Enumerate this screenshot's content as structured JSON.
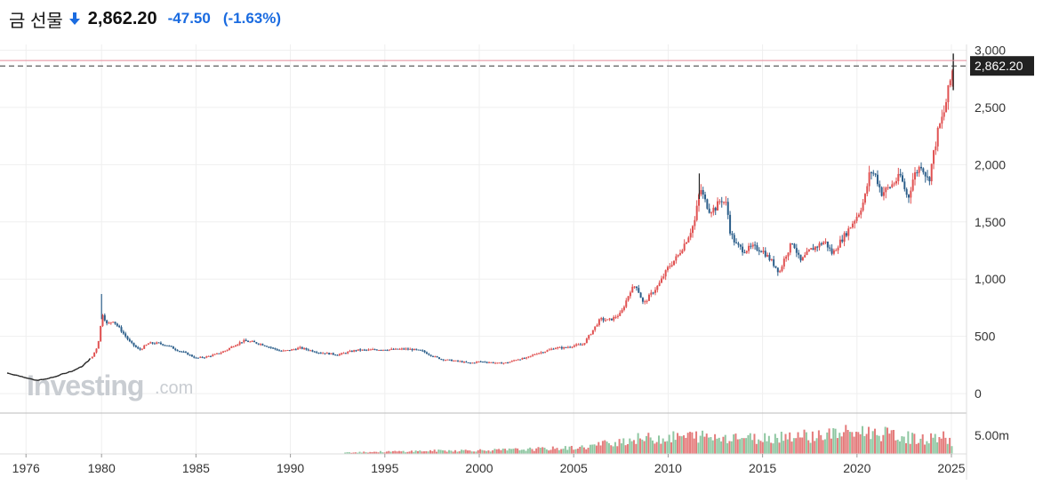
{
  "header": {
    "title": "금 선물",
    "price": "2,862.20",
    "change": "-47.50",
    "change_pct": "(-1.63%)",
    "direction_icon": "arrow-down-icon",
    "change_color": "#1a6be0"
  },
  "watermark": {
    "brand": "Investing",
    "suffix": ".com"
  },
  "colors": {
    "up": "#e05151",
    "down": "#2b5e8a",
    "line": "#222222",
    "vol_up": "#e47b7b",
    "vol_down": "#8fc7a2",
    "ref_line": "#e58a9a",
    "label_bg": "#222222"
  },
  "chart_data": {
    "type": "candlestick",
    "title": "",
    "x_range": [
      1975.0,
      2025.8
    ],
    "x_ticks": [
      1976,
      1980,
      1985,
      1990,
      1995,
      2000,
      2005,
      2010,
      2015,
      2020,
      2025
    ],
    "x_tick_labels": [
      "1976",
      "1980",
      "1985",
      "1990",
      "1995",
      "2000",
      "2005",
      "2010",
      "2015",
      "2020",
      "2025"
    ],
    "y_range": [
      -100,
      3050
    ],
    "y_ticks": [
      0,
      500,
      1000,
      1500,
      2000,
      2500,
      3000
    ],
    "y_tick_labels": [
      "0",
      "500",
      "1,000",
      "1,500",
      "2,000",
      "2,500",
      "3,000"
    ],
    "last_price": 2862.2,
    "last_price_label": "2,862.20",
    "previous_close": 2909.7,
    "grid": true,
    "price_series": {
      "x": [
        1975.0,
        1975.5,
        1976.0,
        1976.5,
        1977.0,
        1977.5,
        1978.0,
        1978.5,
        1979.0,
        1979.5,
        1979.8,
        1980.05,
        1980.3,
        1980.6,
        1981.0,
        1981.5,
        1982.0,
        1982.5,
        1983.0,
        1983.5,
        1984.0,
        1984.5,
        1985.0,
        1985.5,
        1986.0,
        1986.5,
        1987.0,
        1987.5,
        1988.0,
        1988.5,
        1989.0,
        1989.5,
        1990.0,
        1990.5,
        1991.0,
        1991.5,
        1992.0,
        1992.5,
        1993.0,
        1993.5,
        1994.0,
        1994.5,
        1995.0,
        1995.5,
        1996.0,
        1996.5,
        1997.0,
        1997.5,
        1998.0,
        1998.5,
        1999.0,
        1999.5,
        2000.0,
        2000.5,
        2001.0,
        2001.5,
        2002.0,
        2002.5,
        2003.0,
        2003.5,
        2004.0,
        2004.5,
        2005.0,
        2005.5,
        2006.0,
        2006.4,
        2006.8,
        2007.0,
        2007.5,
        2008.0,
        2008.3,
        2008.7,
        2009.0,
        2009.5,
        2010.0,
        2010.5,
        2011.0,
        2011.4,
        2011.7,
        2011.9,
        2012.2,
        2012.5,
        2012.8,
        2013.1,
        2013.3,
        2013.6,
        2014.0,
        2014.5,
        2015.0,
        2015.5,
        2015.9,
        2016.2,
        2016.6,
        2017.0,
        2017.5,
        2018.0,
        2018.3,
        2018.7,
        2019.0,
        2019.5,
        2019.8,
        2020.1,
        2020.4,
        2020.7,
        2021.0,
        2021.3,
        2021.7,
        2022.0,
        2022.3,
        2022.7,
        2023.0,
        2023.4,
        2023.8,
        2024.0,
        2024.3,
        2024.6,
        2024.9,
        2025.1
      ],
      "y": [
        180,
        160,
        140,
        115,
        125,
        145,
        175,
        200,
        240,
        320,
        420,
        700,
        600,
        640,
        560,
        450,
        380,
        440,
        440,
        420,
        380,
        350,
        310,
        320,
        340,
        370,
        420,
        460,
        450,
        430,
        400,
        370,
        380,
        400,
        380,
        360,
        350,
        340,
        360,
        380,
        380,
        385,
        385,
        385,
        390,
        385,
        370,
        330,
        300,
        290,
        280,
        265,
        280,
        275,
        265,
        270,
        300,
        310,
        350,
        370,
        400,
        400,
        420,
        430,
        550,
        650,
        640,
        650,
        700,
        900,
        950,
        780,
        850,
        950,
        1100,
        1200,
        1350,
        1500,
        1800,
        1700,
        1600,
        1620,
        1700,
        1650,
        1400,
        1300,
        1250,
        1280,
        1250,
        1150,
        1060,
        1200,
        1330,
        1150,
        1250,
        1300,
        1330,
        1220,
        1300,
        1420,
        1500,
        1580,
        1700,
        1950,
        1900,
        1750,
        1800,
        1850,
        1900,
        1700,
        1900,
        2000,
        1850,
        2050,
        2300,
        2450,
        2700,
        2862.2
      ]
    },
    "volume_series": {
      "ylabel_tick": "5.00m",
      "x": [
        1992.9,
        1995,
        1998,
        2001,
        2004,
        2005.5,
        2006.5,
        2007.5,
        2008.5,
        2009.5,
        2010.5,
        2011.5,
        2012.5,
        2013.5,
        2014.5,
        2015.5,
        2016.5,
        2017.5,
        2018.5,
        2019.5,
        2020.5,
        2021.5,
        2022.5,
        2023.5,
        2024.5,
        2025.1
      ],
      "y": [
        0.3,
        0.4,
        0.6,
        0.7,
        1.0,
        1.2,
        1.8,
        2.4,
        2.8,
        2.9,
        3.1,
        3.3,
        3.0,
        3.3,
        2.8,
        3.1,
        3.5,
        3.3,
        3.6,
        3.9,
        4.1,
        3.6,
        3.1,
        2.6,
        3.2,
        2.0
      ]
    }
  }
}
